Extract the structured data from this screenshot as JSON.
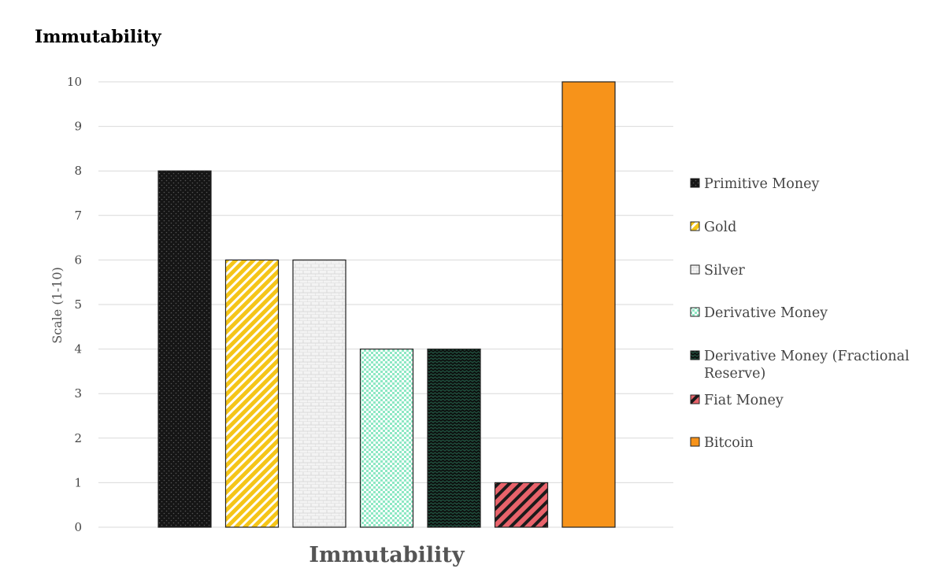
{
  "title": "Immutability",
  "chart_data": {
    "type": "bar",
    "title": "Immutability",
    "xlabel": "Immutability",
    "ylabel": "Scale (1-10)",
    "ylim": [
      0,
      10
    ],
    "yticks": [
      0,
      1,
      2,
      3,
      4,
      5,
      6,
      7,
      8,
      9,
      10
    ],
    "grid": true,
    "legend_position": "right",
    "series": [
      {
        "name": "Primitive Money",
        "value": 8,
        "color": "#1c1c1c",
        "pattern": "dots-dark"
      },
      {
        "name": "Gold",
        "value": 6,
        "color": "#f5c518",
        "pattern": "diagonal-stripes"
      },
      {
        "name": "Silver",
        "value": 6,
        "color": "#f0f0f0",
        "pattern": "brick"
      },
      {
        "name": "Derivative Money",
        "value": 4,
        "color": "#8ee8c4",
        "pattern": "checker"
      },
      {
        "name": "Derivative Money (Fractional Reserve)",
        "value": 4,
        "color": "#1f4a3a",
        "pattern": "zigzag"
      },
      {
        "name": "Fiat Money",
        "value": 1,
        "color": "#e8636b",
        "pattern": "wide-diagonal"
      },
      {
        "name": "Bitcoin",
        "value": 10,
        "color": "#f7931a",
        "pattern": "solid"
      }
    ]
  }
}
